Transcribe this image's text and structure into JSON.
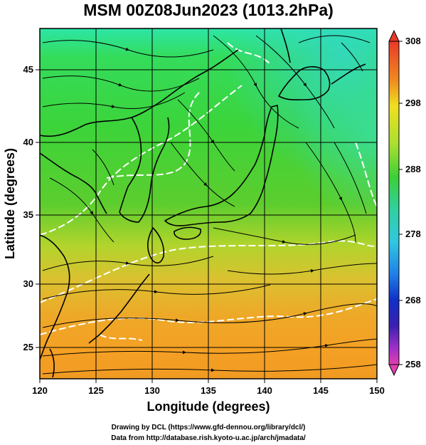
{
  "title": "MSM 00Z08Jun2023 (1013.2hPa)",
  "x_axis": {
    "label": "Longitude (degrees)",
    "range": [
      120,
      150
    ],
    "ticks": [
      "120",
      "125",
      "130",
      "135",
      "140",
      "145",
      "150"
    ]
  },
  "y_axis": {
    "label": "Latitude  (degrees)",
    "range": [
      22.4,
      47.6
    ],
    "ticks": [
      "25",
      "30",
      "35",
      "40",
      "45"
    ]
  },
  "colorbar": {
    "range": [
      258,
      308
    ],
    "ticks": [
      "308",
      "298",
      "288",
      "278",
      "268",
      "258"
    ]
  },
  "credits": {
    "line1": "Drawing by DCL (https://www.gfd-dennou.org/library/dcl/)",
    "line2": "Data from http://database.rish.kyoto-u.ac.jp/arch/jmadata/"
  },
  "colors": {
    "warm": "#f0a020",
    "mid": "#e0e020",
    "green": "#40d030",
    "cyan": "#30d8c0",
    "contour": "#ffffff",
    "coast": "#000000"
  }
}
